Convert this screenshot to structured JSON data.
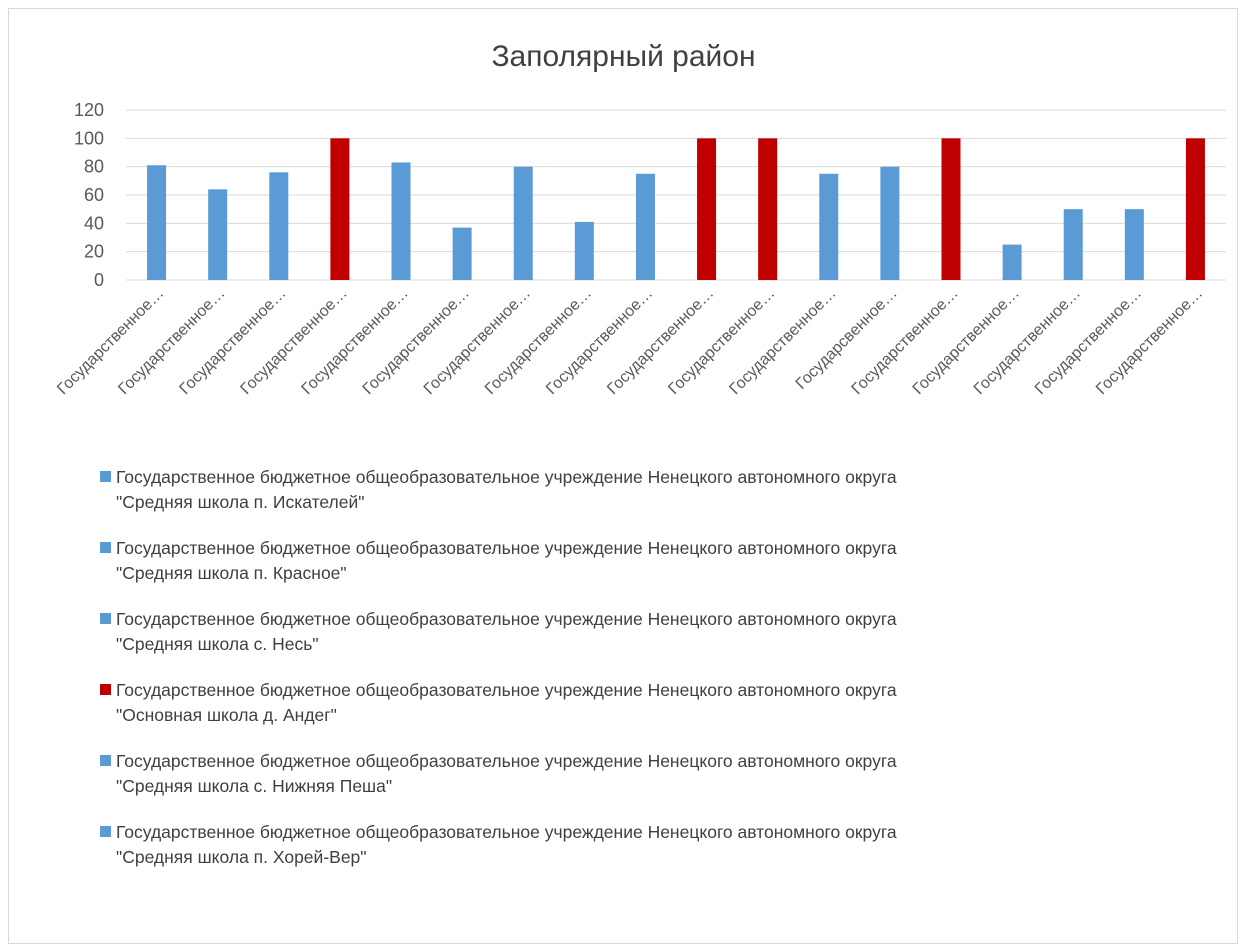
{
  "chart_data": {
    "type": "bar",
    "title": "Заполярный район",
    "xlabel": "",
    "ylabel": "",
    "ylim": [
      0,
      120
    ],
    "yticks": [
      "0",
      "20",
      "40",
      "60",
      "80",
      "100",
      "120"
    ],
    "grid": true,
    "legend_position": "bottom",
    "colors": {
      "normal": "#5b9bd5",
      "highlight": "#c00000",
      "grid": "#d9d9d9",
      "text": "#595959"
    },
    "categories": [
      "Государственное…",
      "Государственное…",
      "Государственное…",
      "Государственное…",
      "Государственное…",
      "Государственное…",
      "Государственное…",
      "Государственное…",
      "Государственное…",
      "Государственное…",
      "Государственное…",
      "Государственное…",
      "Государсвенное…",
      "Государственное…",
      "Государственное…",
      "Государственное…",
      "Государственное…",
      "Государственное…"
    ],
    "values": [
      81,
      64,
      76,
      100,
      83,
      37,
      80,
      41,
      75,
      100,
      100,
      75,
      80,
      100,
      25,
      50,
      50,
      100
    ],
    "bar_colors": [
      "normal",
      "normal",
      "normal",
      "highlight",
      "normal",
      "normal",
      "normal",
      "normal",
      "normal",
      "highlight",
      "highlight",
      "normal",
      "normal",
      "highlight",
      "normal",
      "normal",
      "normal",
      "highlight"
    ]
  },
  "legend": [
    {
      "color": "normal",
      "text": "Государственное бюджетное общеобразовательное учреждение Ненецкого автономного округа\n\"Средняя школа п. Искателей\""
    },
    {
      "color": "normal",
      "text": "Государственное бюджетное общеобразовательное учреждение Ненецкого автономного округа\n\"Средняя школа п. Красное\""
    },
    {
      "color": "normal",
      "text": "Государственное бюджетное общеобразовательное учреждение Ненецкого автономного округа\n\"Средняя школа с. Несь\""
    },
    {
      "color": "highlight",
      "text": "Государственное бюджетное общеобразовательное учреждение Ненецкого автономного округа\n\"Основная школа д. Андег\""
    },
    {
      "color": "normal",
      "text": "Государственное бюджетное общеобразовательное учреждение Ненецкого автономного округа\n\"Средняя школа с. Нижняя Пеша\""
    },
    {
      "color": "normal",
      "text": "Государственное бюджетное общеобразовательное учреждение Ненецкого автономного округа\n\"Средняя школа п. Хорей-Вер\""
    }
  ]
}
